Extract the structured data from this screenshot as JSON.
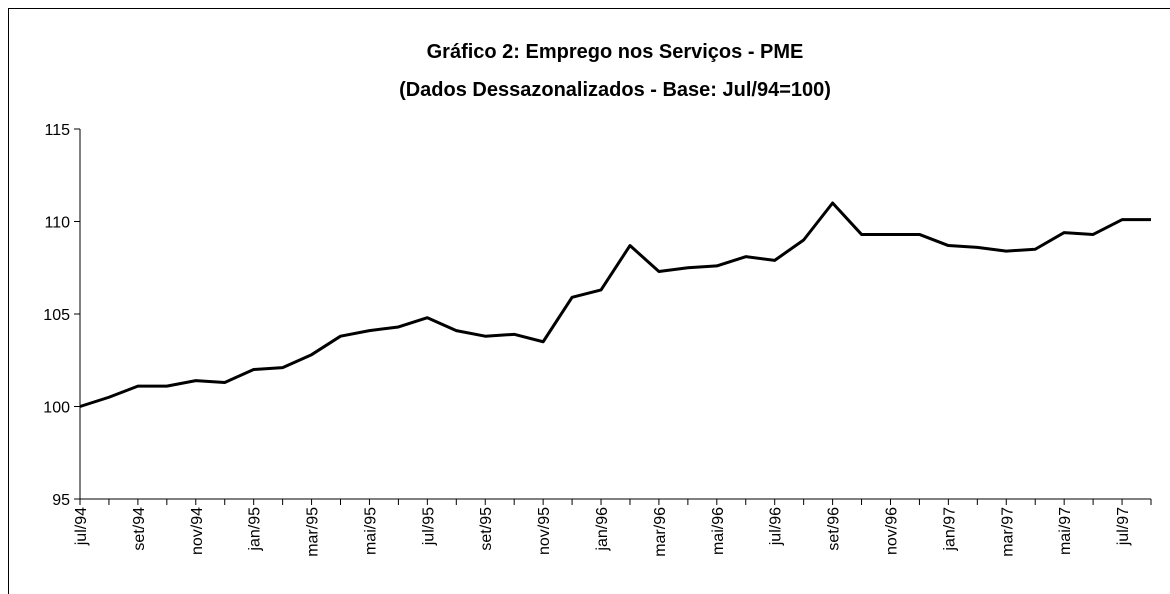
{
  "chart_data": {
    "type": "line",
    "title": "Gráfico 2: Emprego nos Serviços - PME",
    "subtitle": "(Dados Dessazonalizados - Base: Jul/94=100)",
    "categories": [
      "jul/94",
      null,
      "set/94",
      null,
      "nov/94",
      null,
      "jan/95",
      null,
      "mar/95",
      null,
      "mai/95",
      null,
      "jul/95",
      null,
      "set/95",
      null,
      "nov/95",
      null,
      "jan/96",
      null,
      "mar/96",
      null,
      "mai/96",
      null,
      "jul/96",
      null,
      "set/96",
      null,
      "nov/96",
      null,
      "jan/97",
      null,
      "mar/97",
      null,
      "mai/97",
      null,
      "jul/97",
      null
    ],
    "series": [
      {
        "color": "#000000",
        "values": [
          100.0,
          100.5,
          101.1,
          101.1,
          101.4,
          101.3,
          102.0,
          102.1,
          102.8,
          103.8,
          104.1,
          104.3,
          104.8,
          104.1,
          103.8,
          103.9,
          103.5,
          105.9,
          106.3,
          108.7,
          107.3,
          107.5,
          107.6,
          108.1,
          107.9,
          109.0,
          111.0,
          109.3,
          109.3,
          109.3,
          108.7,
          108.6,
          108.4,
          108.5,
          109.4,
          109.3,
          110.1,
          110.1
        ]
      }
    ],
    "ylim": [
      95,
      115
    ],
    "yticks": [
      95,
      100,
      105,
      110,
      115
    ],
    "grid": false
  }
}
